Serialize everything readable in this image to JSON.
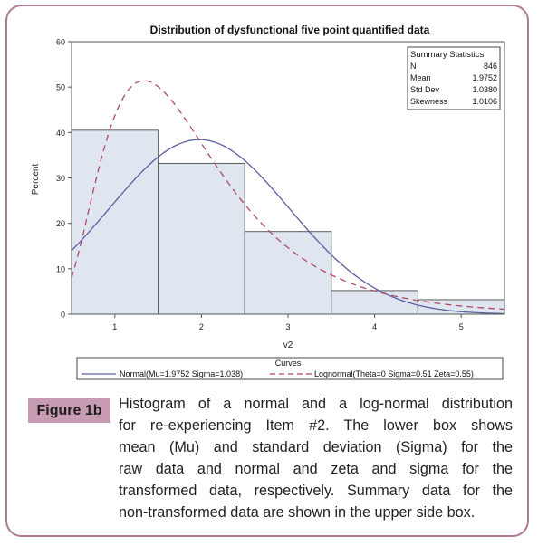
{
  "chart_data": {
    "type": "bar",
    "title": "Distribution of dysfunctional five point quantified data",
    "xlabel": "v2",
    "ylabel": "Percent",
    "categories": [
      "1",
      "2",
      "3",
      "4",
      "5"
    ],
    "x_ticks": [
      1,
      2,
      3,
      4,
      5
    ],
    "xlim": [
      0.5,
      5.5
    ],
    "ylim": [
      0,
      60
    ],
    "y_ticks": [
      0,
      10,
      20,
      30,
      40,
      50,
      60
    ],
    "values": [
      40.5,
      33.2,
      18.2,
      5.2,
      3.2
    ],
    "bar_color": "#dfe6f0",
    "curves": [
      {
        "name": "Normal(Mu=1.9752 Sigma=1.038)",
        "kind": "normal",
        "mu": 1.9752,
        "sigma": 1.038,
        "color": "#5a5fa0",
        "dash": false
      },
      {
        "name": "Lognormal(Theta=0 Sigma=0.51 Zeta=0.55)",
        "kind": "lognormal",
        "theta": 0,
        "sigma": 0.51,
        "zeta": 0.55,
        "color": "#b04a6a",
        "dash": true
      }
    ],
    "legend_title": "Curves",
    "legend_position": "bottom",
    "summary": {
      "title": "Summary Statistics",
      "rows": [
        {
          "label": "N",
          "value": "846"
        },
        {
          "label": "Mean",
          "value": "1.9752"
        },
        {
          "label": "Std Dev",
          "value": "1.0380"
        },
        {
          "label": "Skewness",
          "value": "1.0106"
        }
      ],
      "position": "top-right"
    }
  },
  "figure": {
    "label": "Figure 1b",
    "caption_lines": [
      "Histogram of a normal and a log-normal distribution",
      "for re-experiencing Item #2. The lower box shows",
      "mean (Mu) and standard deviation (Sigma) for the",
      "raw data and normal and zeta and sigma for the",
      "transformed data, respectively. Summary data for the",
      "non-transformed data are shown in the upper side box."
    ]
  },
  "colors": {
    "frame": "#b07a96",
    "label_bg": "#c79bb2"
  }
}
